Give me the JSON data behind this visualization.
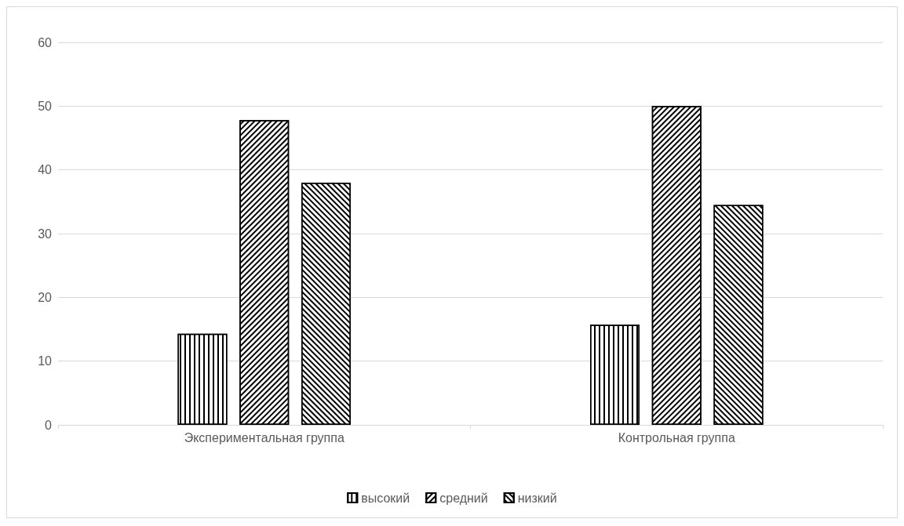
{
  "chart_data": {
    "type": "bar",
    "categories": [
      "Экспериментальная группа",
      "Контрольная группа"
    ],
    "series": [
      {
        "name": "высокий",
        "color": "#ffffff",
        "values": [
          14.3,
          15.7
        ]
      },
      {
        "name": "средний",
        "color": "#ffffff",
        "values": [
          47.8,
          50
        ]
      },
      {
        "name": "низкий",
        "color": "#ffffff",
        "values": [
          38,
          34.5
        ]
      }
    ],
    "ylim": [
      0,
      60
    ],
    "yticks": [
      0,
      10,
      20,
      30,
      40,
      50,
      60
    ],
    "grid": "y",
    "legend": "bottom"
  }
}
